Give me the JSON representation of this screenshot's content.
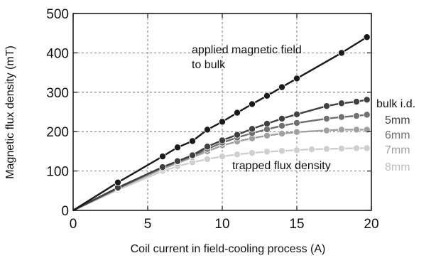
{
  "chart_data": {
    "type": "line",
    "title": "",
    "xlabel": "Coil current in field-cooling process (A)",
    "ylabel": "Magnetic flux density (mT)",
    "xlim": [
      0,
      20
    ],
    "ylim": [
      0,
      500
    ],
    "xticks": [
      0,
      5,
      10,
      15,
      20
    ],
    "yticks": [
      0,
      100,
      200,
      300,
      400,
      500
    ],
    "grid": true,
    "grid_style": "dashed",
    "legend_title": "bulk i.d.",
    "annotations": [
      "applied magnetic field",
      "to bulk",
      "trapped flux density"
    ],
    "series": [
      {
        "name": "applied magnetic field to bulk",
        "color": "#1a1a1a",
        "x": [
          0,
          3,
          6,
          7,
          8,
          9,
          10,
          11,
          12,
          13,
          14,
          15,
          18,
          19.7
        ],
        "y": [
          0,
          71,
          137,
          160,
          176,
          205,
          225,
          248,
          270,
          291,
          313,
          335,
          400,
          440
        ]
      },
      {
        "name": "5mm",
        "color": "#404040",
        "x": [
          0,
          3,
          6,
          7,
          8,
          9,
          10,
          11,
          12,
          13,
          14,
          15,
          17,
          18,
          19,
          19.7
        ],
        "y": [
          0,
          58,
          110,
          125,
          140,
          162,
          178,
          192,
          207,
          220,
          233,
          244,
          265,
          272,
          276,
          281
        ]
      },
      {
        "name": "6mm",
        "color": "#707070",
        "x": [
          0,
          3,
          6,
          7,
          8,
          9,
          10,
          11,
          12,
          13,
          14,
          15,
          17,
          18,
          19,
          19.7
        ],
        "y": [
          0,
          56,
          110,
          124,
          138,
          156,
          172,
          185,
          196,
          206,
          215,
          222,
          233,
          237,
          240,
          243
        ]
      },
      {
        "name": "7mm",
        "color": "#a0a0a0",
        "x": [
          0,
          3,
          6,
          7,
          8,
          9,
          10,
          11,
          12,
          13,
          14,
          15,
          17,
          18,
          19,
          19.7
        ],
        "y": [
          0,
          55,
          106,
          120,
          135,
          150,
          165,
          175,
          183,
          190,
          195,
          199,
          203,
          205,
          205,
          205
        ]
      },
      {
        "name": "8mm",
        "color": "#cfcfcf",
        "x": [
          0,
          3,
          6,
          7,
          8,
          9,
          10,
          11,
          12,
          13,
          14,
          15,
          16,
          17,
          18,
          19,
          19.7
        ],
        "y": [
          0,
          52,
          100,
          112,
          122,
          130,
          137,
          142,
          146,
          149,
          151,
          153,
          155,
          156,
          157,
          158,
          158
        ]
      }
    ]
  }
}
